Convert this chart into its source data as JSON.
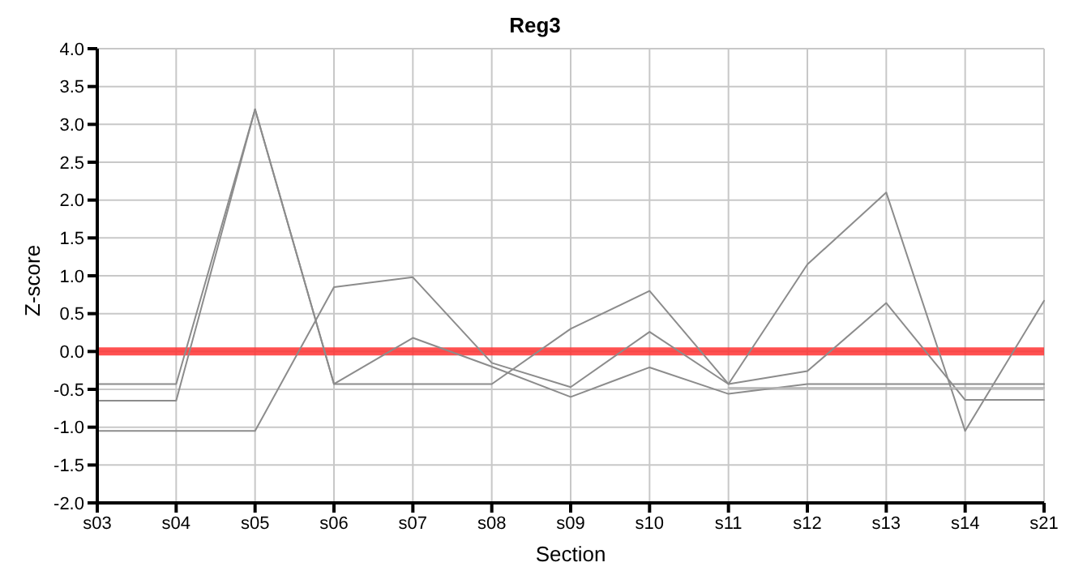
{
  "chart_data": {
    "type": "line",
    "title": "Reg3",
    "xlabel": "Section",
    "ylabel": "Z-score",
    "categories": [
      "s03",
      "s04",
      "s05",
      "s06",
      "s07",
      "s08",
      "s09",
      "s10",
      "s11",
      "s12",
      "s13",
      "s14",
      "s21"
    ],
    "series": [
      {
        "color": "#8c8c8c",
        "values": [
          -0.43,
          -0.43,
          3.2,
          -0.43,
          -0.43,
          -0.43,
          0.3,
          0.8,
          -0.43,
          1.15,
          2.1,
          -1.05,
          0.67
        ]
      },
      {
        "color": "#8c8c8c",
        "values": [
          -1.05,
          -1.05,
          -1.05,
          0.85,
          0.98,
          -0.15,
          -0.47,
          0.26,
          -0.43,
          -0.26,
          0.64,
          -0.64,
          -0.64
        ]
      },
      {
        "color": "#8c8c8c",
        "values": [
          -0.65,
          -0.65,
          3.2,
          -0.43,
          0.18,
          -0.2,
          -0.6,
          -0.21,
          -0.56,
          -0.43,
          -0.43,
          -0.43,
          -0.43
        ]
      },
      {
        "color": "#b4b4b4",
        "values": [
          null,
          null,
          null,
          null,
          null,
          null,
          null,
          null,
          -0.48,
          -0.48,
          -0.48,
          -0.48,
          -0.48
        ]
      }
    ],
    "ylim": [
      -2,
      4
    ],
    "yticks": [
      {
        "value": -2,
        "label": "-2.0"
      },
      {
        "value": -1.5,
        "label": "-1.5"
      },
      {
        "value": -1,
        "label": "-1.0"
      },
      {
        "value": -0.5,
        "label": "-0.5"
      },
      {
        "value": 0,
        "label": "0.0"
      },
      {
        "value": 0.5,
        "label": "0.5"
      },
      {
        "value": 1,
        "label": "1.0"
      },
      {
        "value": 1.5,
        "label": "1.5"
      },
      {
        "value": 2,
        "label": "2.0"
      },
      {
        "value": 2.5,
        "label": "2.5"
      },
      {
        "value": 3,
        "label": "3.0"
      },
      {
        "value": 3.5,
        "label": "3.5"
      },
      {
        "value": 4,
        "label": "4.0"
      }
    ],
    "ref_lines": [
      {
        "axis": "y",
        "value": 0,
        "color": "#ff3333"
      }
    ],
    "grid": true,
    "marker": "none",
    "line_style": "solid"
  }
}
